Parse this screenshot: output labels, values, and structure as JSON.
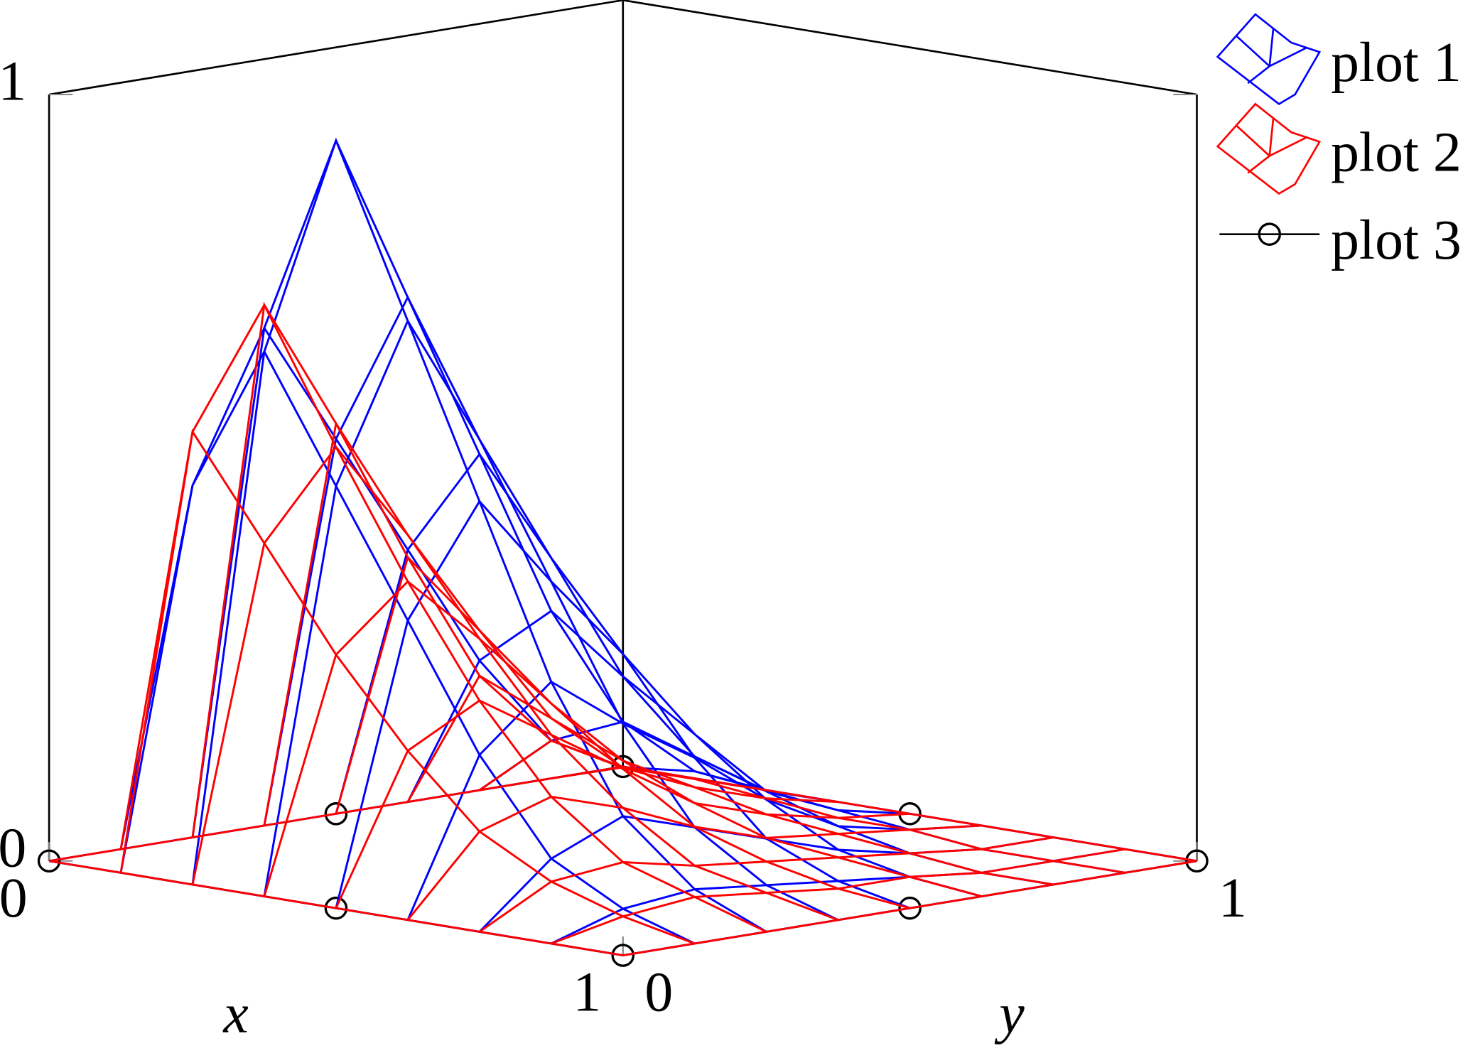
{
  "chart_data": {
    "type": "mesh3d",
    "x": [
      0,
      0.125,
      0.25,
      0.375,
      0.5,
      0.625,
      0.75,
      0.875,
      1
    ],
    "y": [
      0,
      0.125,
      0.25,
      0.375,
      0.5,
      0.625,
      0.75,
      0.875,
      1
    ],
    "xlabel": "x",
    "ylabel": "y",
    "xlim": [
      0,
      1
    ],
    "ylim": [
      0,
      1
    ],
    "zlim": [
      0,
      1
    ],
    "xticks": [
      0,
      1
    ],
    "yticks": [
      0,
      1
    ],
    "zticks": [
      0,
      1
    ],
    "series": [
      {
        "name": "plot 1",
        "color": "#0000ff",
        "z": [
          [
            0,
            0,
            0,
            0,
            0,
            0,
            0,
            0,
            0
          ],
          [
            0,
            0.49,
            0.68,
            0.52,
            0.36,
            0.2,
            0.08,
            0.03,
            0
          ],
          [
            0,
            0.68,
            0.94,
            0.72,
            0.5,
            0.28,
            0.12,
            0.04,
            0
          ],
          [
            0,
            0.52,
            0.72,
            0.55,
            0.38,
            0.21,
            0.09,
            0.03,
            0
          ],
          [
            0,
            0.36,
            0.5,
            0.38,
            0.27,
            0.15,
            0.06,
            0.02,
            0
          ],
          [
            0,
            0.2,
            0.28,
            0.21,
            0.15,
            0.08,
            0.03,
            0.01,
            0
          ],
          [
            0,
            0.08,
            0.12,
            0.09,
            0.06,
            0.03,
            0.01,
            0,
            0
          ],
          [
            0,
            0.03,
            0.04,
            0.03,
            0.02,
            0.01,
            0,
            0,
            0
          ],
          [
            0,
            0,
            0,
            0,
            0,
            0,
            0,
            0,
            0
          ]
        ]
      },
      {
        "name": "plot 2",
        "color": "#ff0000",
        "z": [
          [
            0,
            0,
            0,
            0,
            0,
            0,
            0,
            0,
            0
          ],
          [
            0,
            0.56,
            0.71,
            0.54,
            0.35,
            0.18,
            0.08,
            0.03,
            0
          ],
          [
            0,
            0.43,
            0.54,
            0.41,
            0.27,
            0.14,
            0.06,
            0.03,
            0
          ],
          [
            0,
            0.3,
            0.38,
            0.29,
            0.19,
            0.1,
            0.05,
            0.02,
            0
          ],
          [
            0,
            0.19,
            0.24,
            0.18,
            0.12,
            0.06,
            0.03,
            0.01,
            0
          ],
          [
            0,
            0.1,
            0.13,
            0.1,
            0.06,
            0.03,
            0.02,
            0.01,
            0
          ],
          [
            0,
            0.05,
            0.06,
            0.04,
            0.03,
            0.02,
            0.01,
            0,
            0
          ],
          [
            0,
            0.02,
            0.03,
            0.02,
            0.01,
            0.01,
            0,
            0,
            0
          ],
          [
            0,
            0,
            0,
            0,
            0,
            0,
            0,
            0,
            0
          ]
        ]
      },
      {
        "name": "plot 3",
        "color": "#000000",
        "marker": "circle",
        "x": [
          0,
          0.5,
          1,
          1,
          1,
          0.5,
          0,
          0
        ],
        "y": [
          0,
          0,
          0,
          0.5,
          1,
          1,
          1,
          0.5
        ],
        "z": [
          0,
          0,
          0,
          0,
          0,
          0,
          0,
          0
        ]
      }
    ]
  }
}
